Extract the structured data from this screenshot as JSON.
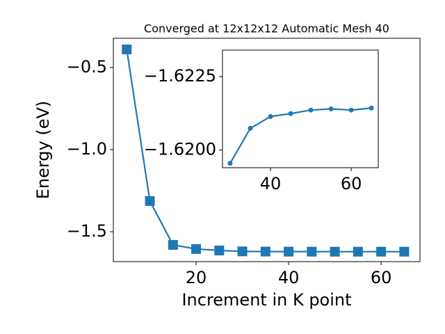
{
  "chart_data": [
    {
      "type": "line",
      "title": "Converged at 12x12x12 Automatic Mesh 40",
      "x_label": "Increment in K point",
      "y_label": "Energy (eV)",
      "x": [
        5,
        10,
        15,
        20,
        25,
        30,
        35,
        40,
        45,
        50,
        55,
        60,
        65
      ],
      "series": [
        {
          "color": "#1f77b4",
          "marker": "square",
          "values": [
            -0.39,
            -1.313,
            -1.58,
            -1.605,
            -1.614,
            -1.61955,
            -1.62074,
            -1.62114,
            -1.62124,
            -1.62136,
            -1.6214,
            -1.62136,
            -1.62143
          ]
        }
      ],
      "xlim": [
        2.1,
        68.4
      ],
      "ylim": [
        -1.682,
        -0.322
      ],
      "xticks": [
        20,
        40,
        60
      ],
      "yticks": [
        {
          "value": -1.5,
          "label": "−1.5"
        },
        {
          "value": -1.0,
          "label": "−1.0"
        },
        {
          "value": -0.5,
          "label": "−0.5"
        }
      ]
    },
    {
      "type": "line",
      "x": [
        30,
        35,
        40,
        45,
        50,
        55,
        60,
        65
      ],
      "series": [
        {
          "color": "#1f77b4",
          "marker": "circle",
          "values": [
            -1.61955,
            -1.62074,
            -1.62114,
            -1.62124,
            -1.62136,
            -1.6214,
            -1.62136,
            -1.62143
          ]
        }
      ],
      "xlim": [
        28.1,
        66.7
      ],
      "ylim": [
        -1.6194,
        -1.6234
      ],
      "xticks": [
        40,
        60
      ],
      "yticks": [
        {
          "value": -1.62,
          "label": "−1.6200"
        },
        {
          "value": -1.6225,
          "label": "−1.6225"
        }
      ]
    }
  ]
}
